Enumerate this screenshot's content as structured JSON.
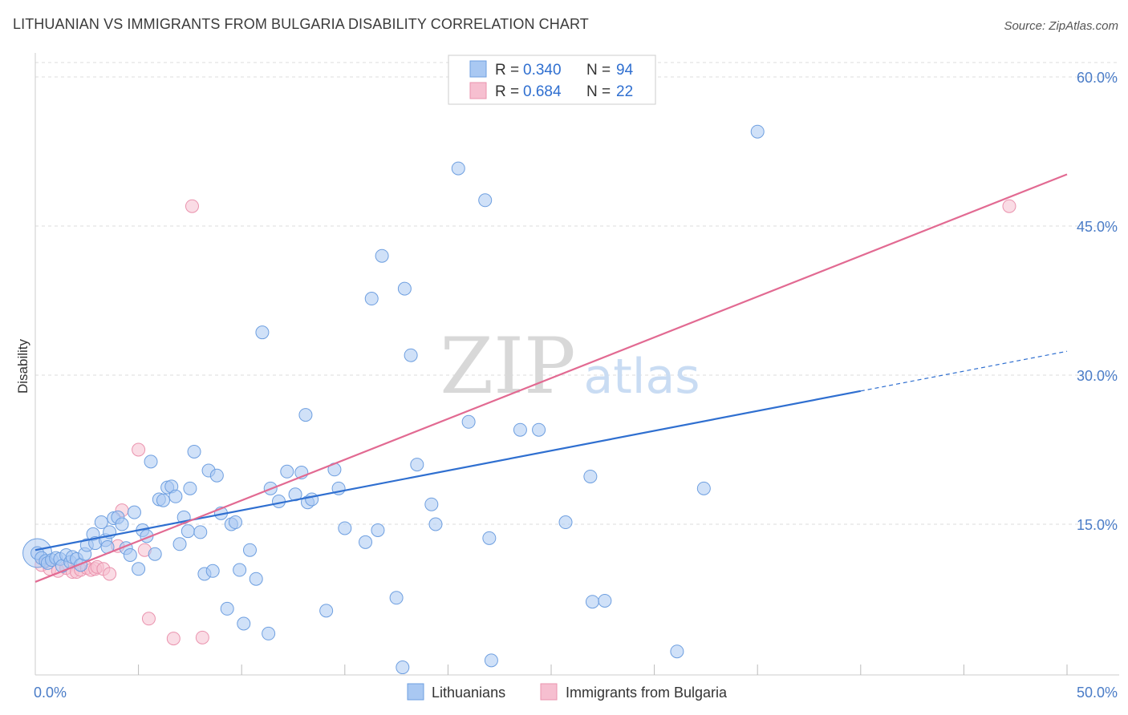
{
  "title": "LITHUANIAN VS IMMIGRANTS FROM BULGARIA DISABILITY CORRELATION CHART",
  "source": "Source: ZipAtlas.com",
  "watermark": {
    "zip": "ZIP",
    "atlas": "atlas"
  },
  "legend_box": {
    "rows": [
      {
        "r_label": "R = ",
        "r_value": "0.340",
        "n_label": "N = ",
        "n_value": "94"
      },
      {
        "r_label": "R = ",
        "r_value": "0.684",
        "n_label": "N = ",
        "n_value": "22"
      }
    ]
  },
  "bottom_legend": [
    "Lithuanians",
    "Immigrants from Bulgaria"
  ],
  "colors": {
    "blue_fill": "#a9c8f2",
    "blue_stroke": "#6e9fe0",
    "blue_line": "#2f6fd0",
    "pink_fill": "#f6bfd0",
    "pink_stroke": "#ea93ae",
    "pink_line": "#e26a92",
    "grid": "#dddddd",
    "tick_text": "#4a7cc7"
  },
  "chart_data": {
    "type": "scatter",
    "title": "LITHUANIAN VS IMMIGRANTS FROM BULGARIA DISABILITY CORRELATION CHART",
    "xlabel": "",
    "ylabel": "Disability",
    "xlim": [
      0,
      50
    ],
    "ylim": [
      0,
      63
    ],
    "x_ticks": [
      "0.0%",
      "50.0%"
    ],
    "y_ticks": [
      {
        "value": 15,
        "label": "15.0%"
      },
      {
        "value": 30,
        "label": "30.0%"
      },
      {
        "value": 45,
        "label": "45.0%"
      },
      {
        "value": 60,
        "label": "60.0%"
      }
    ],
    "x_minor_ticks": [
      0,
      5,
      10,
      15,
      20,
      25,
      30,
      35,
      40,
      45,
      50
    ],
    "grid": true,
    "legend_position": "top-center",
    "series": [
      {
        "name": "Lithuanians",
        "r": 0.34,
        "n": 94,
        "trend": {
          "x": [
            0,
            40
          ],
          "y": [
            12.4,
            28.4
          ],
          "dashed_to": [
            50,
            32.4
          ]
        },
        "points": [
          [
            0.1,
            12.1
          ],
          [
            0.3,
            11.6
          ],
          [
            0.5,
            11.3
          ],
          [
            0.6,
            11.1
          ],
          [
            0.8,
            11.4
          ],
          [
            1.0,
            11.6
          ],
          [
            1.2,
            11.5
          ],
          [
            1.3,
            10.8
          ],
          [
            1.5,
            11.9
          ],
          [
            1.7,
            11.2
          ],
          [
            1.8,
            11.7
          ],
          [
            2.0,
            11.5
          ],
          [
            2.2,
            10.9
          ],
          [
            2.4,
            12.0
          ],
          [
            2.5,
            12.9
          ],
          [
            2.8,
            14.0
          ],
          [
            2.9,
            13.1
          ],
          [
            3.2,
            15.2
          ],
          [
            3.4,
            13.4
          ],
          [
            3.5,
            12.7
          ],
          [
            3.6,
            14.2
          ],
          [
            3.8,
            15.6
          ],
          [
            4.0,
            15.7
          ],
          [
            4.2,
            15.0
          ],
          [
            4.4,
            12.6
          ],
          [
            4.6,
            11.9
          ],
          [
            4.8,
            16.2
          ],
          [
            5.0,
            10.5
          ],
          [
            5.2,
            14.4
          ],
          [
            5.4,
            13.8
          ],
          [
            5.6,
            21.3
          ],
          [
            5.8,
            12.0
          ],
          [
            6.0,
            17.5
          ],
          [
            6.2,
            17.4
          ],
          [
            6.4,
            18.7
          ],
          [
            6.6,
            18.8
          ],
          [
            6.8,
            17.8
          ],
          [
            7.0,
            13.0
          ],
          [
            7.2,
            15.7
          ],
          [
            7.4,
            14.3
          ],
          [
            7.5,
            18.6
          ],
          [
            7.7,
            22.3
          ],
          [
            8.0,
            14.2
          ],
          [
            8.2,
            10.0
          ],
          [
            8.4,
            20.4
          ],
          [
            8.6,
            10.3
          ],
          [
            8.8,
            19.9
          ],
          [
            9.0,
            16.1
          ],
          [
            9.3,
            6.5
          ],
          [
            9.5,
            15.0
          ],
          [
            9.7,
            15.2
          ],
          [
            9.9,
            10.4
          ],
          [
            10.1,
            5.0
          ],
          [
            10.4,
            12.4
          ],
          [
            10.7,
            9.5
          ],
          [
            11.0,
            34.3
          ],
          [
            11.3,
            4.0
          ],
          [
            11.4,
            18.6
          ],
          [
            11.8,
            17.3
          ],
          [
            12.2,
            20.3
          ],
          [
            12.6,
            18.0
          ],
          [
            12.9,
            20.2
          ],
          [
            13.1,
            26.0
          ],
          [
            13.2,
            17.2
          ],
          [
            13.4,
            17.5
          ],
          [
            14.1,
            6.3
          ],
          [
            14.5,
            20.5
          ],
          [
            14.7,
            18.6
          ],
          [
            15.0,
            14.6
          ],
          [
            16.0,
            13.2
          ],
          [
            16.3,
            37.7
          ],
          [
            16.6,
            14.4
          ],
          [
            16.8,
            42.0
          ],
          [
            17.5,
            7.6
          ],
          [
            17.8,
            0.6
          ],
          [
            17.9,
            38.7
          ],
          [
            18.2,
            32.0
          ],
          [
            18.5,
            21.0
          ],
          [
            19.2,
            17.0
          ],
          [
            19.4,
            15.0
          ],
          [
            20.5,
            50.8
          ],
          [
            21.0,
            25.3
          ],
          [
            21.8,
            47.6
          ],
          [
            22.0,
            13.6
          ],
          [
            22.1,
            1.3
          ],
          [
            23.5,
            24.5
          ],
          [
            24.4,
            24.5
          ],
          [
            25.7,
            15.2
          ],
          [
            26.9,
            19.8
          ],
          [
            27.0,
            7.2
          ],
          [
            27.6,
            7.3
          ],
          [
            31.1,
            2.2
          ],
          [
            32.4,
            18.6
          ],
          [
            35.0,
            54.5
          ]
        ]
      },
      {
        "name": "Immigrants from Bulgaria",
        "r": 0.684,
        "n": 22,
        "trend": {
          "x": [
            0,
            50
          ],
          "y": [
            9.2,
            50.2
          ]
        },
        "points": [
          [
            0.3,
            10.9
          ],
          [
            0.7,
            10.5
          ],
          [
            1.1,
            10.3
          ],
          [
            1.5,
            10.6
          ],
          [
            1.8,
            10.2
          ],
          [
            2.0,
            10.2
          ],
          [
            2.2,
            10.4
          ],
          [
            2.5,
            10.6
          ],
          [
            2.7,
            10.4
          ],
          [
            2.9,
            10.5
          ],
          [
            3.0,
            10.7
          ],
          [
            3.3,
            10.5
          ],
          [
            3.6,
            10.0
          ],
          [
            4.0,
            12.8
          ],
          [
            4.2,
            16.4
          ],
          [
            5.0,
            22.5
          ],
          [
            5.3,
            12.4
          ],
          [
            5.5,
            5.5
          ],
          [
            6.7,
            3.5
          ],
          [
            7.6,
            47.0
          ],
          [
            8.1,
            3.6
          ],
          [
            47.2,
            47.0
          ]
        ]
      }
    ]
  }
}
